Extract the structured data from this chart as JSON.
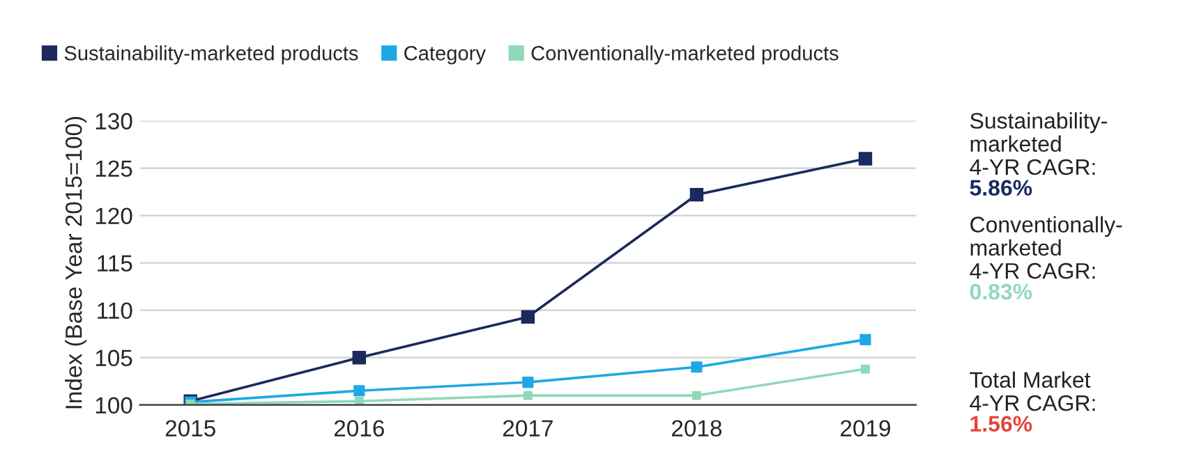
{
  "chart_data": {
    "type": "line",
    "ylabel": "Index (Base Year 2015=100)",
    "categories": [
      "2015",
      "2016",
      "2017",
      "2018",
      "2019"
    ],
    "series": [
      {
        "name": "Sustainability-marketed products",
        "color": "#1b2a5c",
        "values": [
          100.4,
          105.0,
          109.3,
          122.2,
          126.0
        ]
      },
      {
        "name": "Category",
        "color": "#1ea7e6",
        "values": [
          100.3,
          101.5,
          102.4,
          104.0,
          106.9
        ]
      },
      {
        "name": "Conventionally-marketed products",
        "color": "#8fd8b8",
        "values": [
          100.1,
          100.4,
          101.0,
          101.0,
          103.8
        ]
      }
    ],
    "ylim": [
      100,
      130
    ],
    "yticks": [
      100,
      105,
      110,
      115,
      120,
      125,
      130
    ],
    "grid": "y",
    "legend": "top left",
    "marker": "square",
    "line_style": "solid",
    "annotations": [
      "Sustainability-\nmarketed\n4-YR CAGR:",
      "5.86%",
      "Conventionally-\nmarketed\n4-YR CAGR:",
      "0.83%",
      "Total Market\n4-YR CAGR:",
      "1.56%"
    ]
  }
}
